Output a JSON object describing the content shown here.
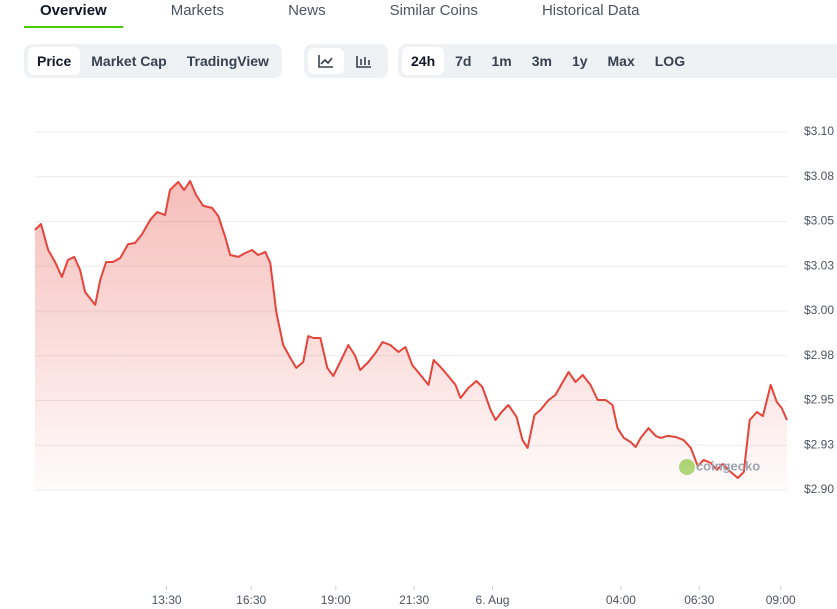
{
  "tabs": [
    "Overview",
    "Markets",
    "News",
    "Similar Coins",
    "Historical Data"
  ],
  "chart_types": [
    "Price",
    "Market Cap",
    "TradingView"
  ],
  "ranges": [
    "24h",
    "7d",
    "1m",
    "3m",
    "1y",
    "Max",
    "LOG"
  ],
  "watermark": "coingecko",
  "chart_data": {
    "type": "line",
    "color": "#e5443a",
    "grid": true,
    "xlim": [
      0,
      24
    ],
    "ylim": [
      2.9,
      3.1
    ],
    "xticks": [
      {
        "value": 4.2,
        "label": "13:30"
      },
      {
        "value": 6.9,
        "label": "16:30"
      },
      {
        "value": 9.6,
        "label": "19:00"
      },
      {
        "value": 12.1,
        "label": "21:30"
      },
      {
        "value": 14.6,
        "label": "6. Aug"
      },
      {
        "value": 18.7,
        "label": "04:00"
      },
      {
        "value": 21.2,
        "label": "06:30"
      },
      {
        "value": 23.8,
        "label": "09:00"
      }
    ],
    "yticks": [
      {
        "value": 3.1,
        "label": "$3.10"
      },
      {
        "value": 3.075,
        "label": "$3.08"
      },
      {
        "value": 3.05,
        "label": "$3.05"
      },
      {
        "value": 3.025,
        "label": "$3.03"
      },
      {
        "value": 3.0,
        "label": "$3.00"
      },
      {
        "value": 2.975,
        "label": "$2.98"
      },
      {
        "value": 2.95,
        "label": "$2.95"
      },
      {
        "value": 2.925,
        "label": "$2.93"
      },
      {
        "value": 2.9,
        "label": "$2.90"
      }
    ],
    "x": [
      0,
      0.19,
      0.42,
      0.64,
      0.86,
      1.05,
      1.25,
      1.44,
      1.6,
      1.92,
      2.08,
      2.27,
      2.49,
      2.72,
      2.97,
      3.19,
      3.42,
      3.67,
      3.9,
      4.15,
      4.31,
      4.57,
      4.76,
      4.95,
      5.14,
      5.37,
      5.65,
      5.85,
      6.07,
      6.23,
      6.49,
      6.71,
      6.93,
      7.12,
      7.35,
      7.51,
      7.7,
      7.92,
      8.15,
      8.34,
      8.56,
      8.72,
      8.88,
      9.11,
      9.33,
      9.52,
      9.74,
      10,
      10.22,
      10.38,
      10.64,
      10.89,
      11.09,
      11.34,
      11.6,
      11.82,
      12.04,
      12.3,
      12.56,
      12.72,
      12.94,
      13.16,
      13.42,
      13.58,
      13.83,
      14.09,
      14.28,
      14.54,
      14.7,
      14.89,
      15.11,
      15.37,
      15.56,
      15.72,
      15.94,
      16.13,
      16.39,
      16.61,
      16.84,
      17.03,
      17.25,
      17.48,
      17.73,
      17.96,
      18.21,
      18.43,
      18.59,
      18.79,
      19.01,
      19.17,
      19.33,
      19.58,
      19.81,
      19.97,
      20.19,
      20.45,
      20.7,
      20.93,
      21.15,
      21.34,
      21.57,
      21.76,
      21.95,
      22.2,
      22.43,
      22.62,
      22.81,
      23.04,
      23.23,
      23.48,
      23.67,
      23.83,
      24
    ],
    "series": [
      {
        "name": "Price",
        "color": "#e5443a",
        "values": [
          3.0453,
          3.0486,
          3.0341,
          3.0274,
          3.019,
          3.0285,
          3.0302,
          3.0229,
          3.0106,
          3.0034,
          3.0173,
          3.0274,
          3.0274,
          3.0296,
          3.0374,
          3.038,
          3.043,
          3.0508,
          3.0553,
          3.0536,
          3.0676,
          3.0721,
          3.0676,
          3.0726,
          3.0648,
          3.0587,
          3.0576,
          3.0531,
          3.0414,
          3.0313,
          3.0302,
          3.0324,
          3.0341,
          3.0313,
          3.033,
          3.0268,
          2.9994,
          2.981,
          2.9737,
          2.9682,
          2.9715,
          2.986,
          2.9849,
          2.9849,
          2.9682,
          2.9637,
          2.9715,
          2.981,
          2.9749,
          2.967,
          2.9715,
          2.9771,
          2.9827,
          2.981,
          2.9771,
          2.9799,
          2.9698,
          2.9643,
          2.9587,
          2.9726,
          2.9687,
          2.9643,
          2.9587,
          2.9514,
          2.957,
          2.9609,
          2.9575,
          2.9447,
          2.9391,
          2.9436,
          2.9475,
          2.9408,
          2.9279,
          2.9235,
          2.9419,
          2.9447,
          2.9503,
          2.9531,
          2.9603,
          2.9659,
          2.9603,
          2.9643,
          2.9587,
          2.9503,
          2.9503,
          2.9475,
          2.9346,
          2.9291,
          2.9268,
          2.924,
          2.9291,
          2.9346,
          2.9302,
          2.9291,
          2.9302,
          2.9296,
          2.9279,
          2.9235,
          2.9134,
          2.9168,
          2.9151,
          2.9112,
          2.9145,
          2.9101,
          2.9067,
          2.9101,
          2.9391,
          2.9436,
          2.9413,
          2.9587,
          2.9492,
          2.9458,
          2.9391
        ]
      }
    ]
  }
}
